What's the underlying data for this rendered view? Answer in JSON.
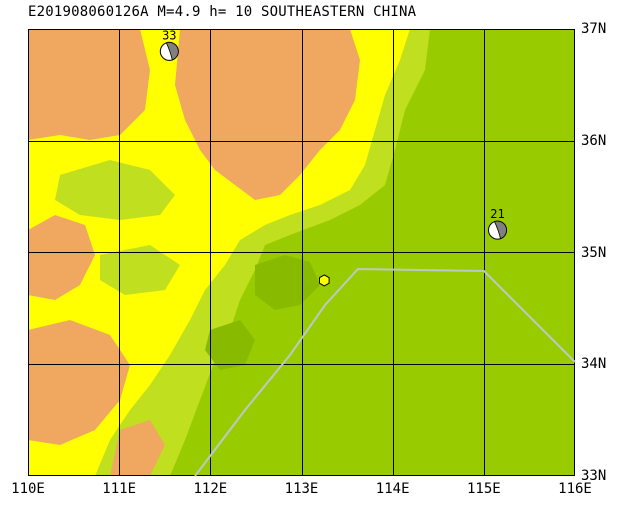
{
  "title": "E201908060126A  M=4.9  h= 10  SOUTHEASTERN CHINA",
  "lon_labels": [
    "110E",
    "111E",
    "112E",
    "113E",
    "114E",
    "115E",
    "116E"
  ],
  "lat_labels": [
    "37N",
    "36N",
    "35N",
    "34N",
    "33N"
  ],
  "events": [
    {
      "label": "33",
      "lon": 111.55,
      "lat": 36.8
    },
    {
      "label": "21",
      "lon": 115.15,
      "lat": 35.2
    }
  ],
  "epicenter": {
    "lon": 113.25,
    "lat": 34.75
  },
  "colors": {
    "plain": "#99cc00",
    "lowland": "#bfdf1f",
    "hills": "#ffff00",
    "mountains": "#f0a860",
    "boundary": "#bcc8c8"
  }
}
